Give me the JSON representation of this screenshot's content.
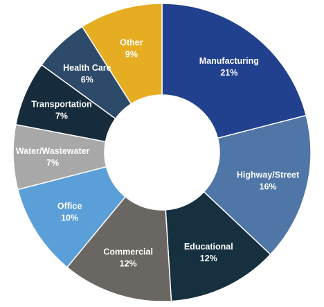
{
  "chart_data": {
    "type": "pie",
    "variant": "donut",
    "title": "",
    "unit": "%",
    "slices": [
      {
        "label": "Manufacturing",
        "value": 21,
        "display": "21%",
        "color": "#21418f"
      },
      {
        "label": "Highway/Street",
        "value": 16,
        "display": "16%",
        "color": "#4f76a7"
      },
      {
        "label": "Educational",
        "value": 12,
        "display": "12%",
        "color": "#173040"
      },
      {
        "label": "Commercial",
        "value": 12,
        "display": "12%",
        "color": "#6a6661"
      },
      {
        "label": "Office",
        "value": 10,
        "display": "10%",
        "color": "#5b9fd8"
      },
      {
        "label": "Water/Wastewater",
        "value": 7,
        "display": "7%",
        "color": "#a8a8a8"
      },
      {
        "label": "Transportation",
        "value": 7,
        "display": "7%",
        "color": "#162c3c"
      },
      {
        "label": "Health Care",
        "value": 6,
        "display": "6%",
        "color": "#2e4a6a"
      },
      {
        "label": "Other",
        "value": 9,
        "display": "9%",
        "color": "#e7ad22"
      }
    ]
  },
  "colors": {
    "background": "#ffffff",
    "label_text": "#ffffff"
  }
}
